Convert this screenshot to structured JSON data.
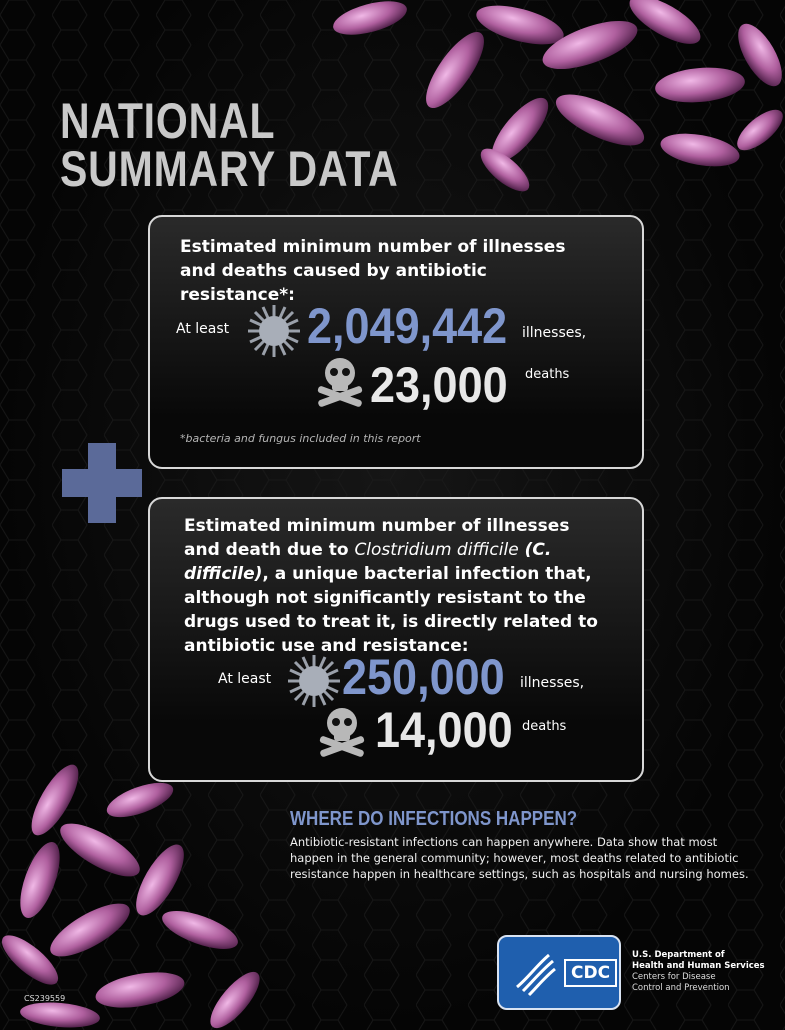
{
  "header": {
    "title_lines": [
      "NATIONAL",
      "SUMMARY DATA"
    ]
  },
  "box1": {
    "heading": "Estimated minimum number of illnesses and deaths caused by antibiotic resistance*:",
    "at_least": "At least",
    "illnesses_number": "2,049,442",
    "illnesses_label": "illnesses,",
    "deaths_number": "23,000",
    "deaths_label": "deaths",
    "footnote": "*bacteria and fungus included in this report"
  },
  "box2": {
    "heading_parts": [
      "Estimated minimum number of illnesses and death due to ",
      "Clostridium difficile",
      "(C. difficile)",
      ", a unique bacterial infection that, although not significantly resistant to the drugs used to treat it, is directly related to antibiotic use and resistance:"
    ],
    "at_least": "At least",
    "illnesses_number": "250,000",
    "illnesses_label": "illnesses,",
    "deaths_number": "14,000",
    "deaths_label": "deaths"
  },
  "section": {
    "heading": "WHERE DO INFECTIONS HAPPEN?",
    "body": "Antibiotic-resistant infections can happen anywhere. Data show that most happen in the general community; however, most deaths related to antibiotic resistance happen in healthcare settings, such as hospitals and nursing homes."
  },
  "footer": {
    "logo": "CDC",
    "department": [
      "U.S. Department of",
      "Health and Human Services",
      "Centers for Disease",
      "Control and Prevention"
    ],
    "code": "CS239559"
  }
}
